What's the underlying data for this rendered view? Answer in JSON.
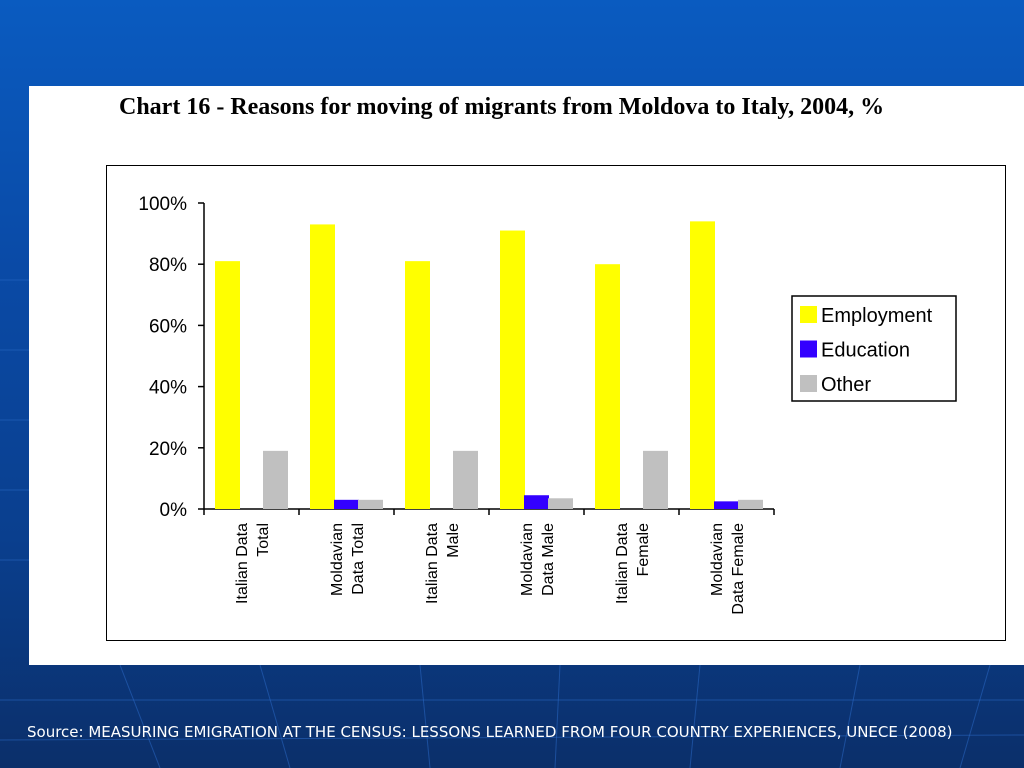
{
  "title": "Chart 16 - Reasons for moving of migrants from Moldova to Italy, 2004, %",
  "source": "Source: MEASURING EMIGRATION AT THE CENSUS: LESSONS LEARNED FROM FOUR COUNTRY EXPERIENCES, UNECE (2008)",
  "colors": {
    "slide_bg": "#0a4aa6",
    "panel_bg": "#ffffff",
    "source_text": "#ffffff"
  },
  "chart_data": {
    "type": "bar",
    "title": "Chart 16 - Reasons for moving of migrants from Moldova to Italy, 2004, %",
    "xlabel": "",
    "ylabel": "",
    "ylim": [
      0,
      100
    ],
    "yticks": [
      "0%",
      "20%",
      "40%",
      "60%",
      "80%",
      "100%"
    ],
    "categories": [
      [
        "Italian Data",
        "Total"
      ],
      [
        "Moldavian",
        "Data Total"
      ],
      [
        "Italian Data",
        "Male"
      ],
      [
        "Moldavian",
        "Data Male"
      ],
      [
        "Italian Data",
        "Female"
      ],
      [
        "Moldavian",
        "Data Female"
      ]
    ],
    "series": [
      {
        "name": "Employment",
        "color": "#ffff00",
        "values": [
          81,
          93,
          81,
          91,
          80,
          94
        ]
      },
      {
        "name": "Education",
        "color": "#3300ff",
        "values": [
          0,
          3,
          0,
          4.5,
          0,
          2.5
        ]
      },
      {
        "name": "Other",
        "color": "#c0c0c0",
        "values": [
          19,
          3,
          19,
          3.5,
          19,
          3
        ]
      }
    ],
    "grid": false,
    "legend_position": "right"
  }
}
